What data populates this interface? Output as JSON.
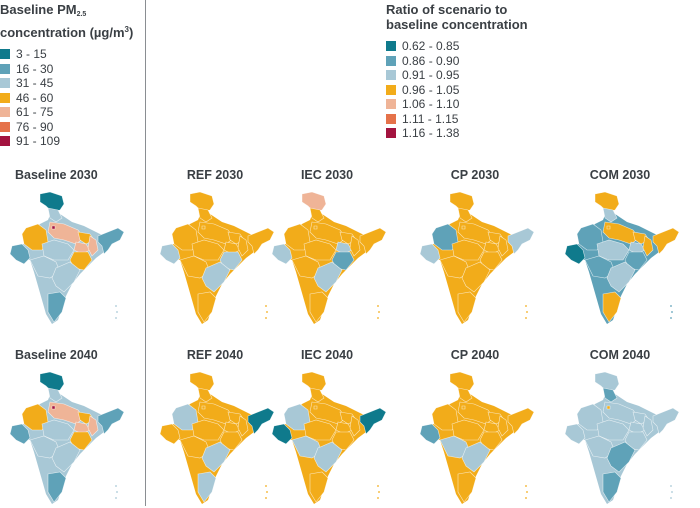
{
  "baseline_legend": {
    "title_main": "Baseline PM",
    "title_sub": "2.5",
    "title_line2_prefix": "concentration (µg/m",
    "title_sup": "3",
    "title_line2_suffix": ")",
    "items": [
      {
        "label": "3 - 15",
        "color": "#0f7a8c"
      },
      {
        "label": "16 - 30",
        "color": "#5fa2b8"
      },
      {
        "label": "31 - 45",
        "color": "#a8c8d6"
      },
      {
        "label": "46 - 60",
        "color": "#f2ac1a"
      },
      {
        "label": "61 - 75",
        "color": "#efb497"
      },
      {
        "label": "76 - 90",
        "color": "#e5724a"
      },
      {
        "label": "91 - 109",
        "color": "#a3133f"
      }
    ]
  },
  "ratio_legend": {
    "title_line1": "Ratio of scenario to",
    "title_line2": "baseline concentration",
    "items": [
      {
        "label": "0.62 - 0.85",
        "color": "#0f7a8c"
      },
      {
        "label": "0.86 - 0.90",
        "color": "#5fa2b8"
      },
      {
        "label": "0.91 - 0.95",
        "color": "#a8c8d6"
      },
      {
        "label": "0.96 - 1.05",
        "color": "#f2ac1a"
      },
      {
        "label": "1.06 - 1.10",
        "color": "#efb497"
      },
      {
        "label": "1.11 - 1.15",
        "color": "#e5724a"
      },
      {
        "label": "1.16 - 1.38",
        "color": "#a3133f"
      }
    ]
  },
  "panels": [
    {
      "title": "Baseline 2030",
      "regions": {
        "base": "#a8c8d6",
        "jk": "#0f7a8c",
        "hp": "#a8c8d6",
        "raj": "#f2ac1a",
        "guj": "#5fa2b8",
        "up": "#efb497",
        "bihar": "#f2ac1a",
        "odisha": "#f2ac1a",
        "ne": "#5fa2b8",
        "mp": "#a8c8d6",
        "mh": "#a8c8d6",
        "ap": "#a8c8d6",
        "tn": "#5fa2b8",
        "delhi": "#a3133f",
        "wb": "#efb497",
        "jh": "#efb497"
      }
    },
    {
      "title": "REF 2030",
      "regions": {
        "base": "#f2ac1a",
        "jk": "#f2ac1a",
        "hp": "#f2ac1a",
        "raj": "#f2ac1a",
        "guj": "#a8c8d6",
        "up": "#f2ac1a",
        "bihar": "#f2ac1a",
        "odisha": "#a8c8d6",
        "ne": "#f2ac1a",
        "mp": "#f2ac1a",
        "mh": "#f2ac1a",
        "ap": "#a8c8d6",
        "tn": "#f2ac1a",
        "delhi": "#f2ac1a",
        "wb": "#f2ac1a",
        "jh": "#f2ac1a"
      }
    },
    {
      "title": "IEC 2030",
      "regions": {
        "base": "#f2ac1a",
        "jk": "#efb497",
        "hp": "#f2ac1a",
        "raj": "#f2ac1a",
        "guj": "#a8c8d6",
        "up": "#f2ac1a",
        "bihar": "#f2ac1a",
        "odisha": "#5fa2b8",
        "ne": "#f2ac1a",
        "mp": "#f2ac1a",
        "mh": "#f2ac1a",
        "ap": "#a8c8d6",
        "tn": "#f2ac1a",
        "delhi": "#f2ac1a",
        "wb": "#f2ac1a",
        "jh": "#a8c8d6"
      }
    },
    {
      "title": "CP 2030",
      "regions": {
        "base": "#f2ac1a",
        "jk": "#f2ac1a",
        "hp": "#f2ac1a",
        "raj": "#5fa2b8",
        "guj": "#a8c8d6",
        "up": "#f2ac1a",
        "bihar": "#f2ac1a",
        "odisha": "#f2ac1a",
        "ne": "#a8c8d6",
        "mp": "#f2ac1a",
        "mh": "#f2ac1a",
        "ap": "#f2ac1a",
        "tn": "#f2ac1a",
        "delhi": "#f2ac1a",
        "wb": "#f2ac1a",
        "jh": "#f2ac1a"
      }
    },
    {
      "title": "COM 2030",
      "regions": {
        "base": "#5fa2b8",
        "jk": "#f2ac1a",
        "hp": "#a8c8d6",
        "raj": "#5fa2b8",
        "guj": "#0f7a8c",
        "up": "#f2ac1a",
        "bihar": "#f2ac1a",
        "odisha": "#5fa2b8",
        "ne": "#f2ac1a",
        "mp": "#a8c8d6",
        "mh": "#5fa2b8",
        "ap": "#a8c8d6",
        "tn": "#f2ac1a",
        "delhi": "#f2ac1a",
        "wb": "#f2ac1a",
        "jh": "#a8c8d6"
      }
    },
    {
      "title": "Baseline 2040",
      "regions": {
        "base": "#a8c8d6",
        "jk": "#0f7a8c",
        "hp": "#a8c8d6",
        "raj": "#f2ac1a",
        "guj": "#5fa2b8",
        "up": "#efb497",
        "bihar": "#f2ac1a",
        "odisha": "#f2ac1a",
        "ne": "#5fa2b8",
        "mp": "#a8c8d6",
        "mh": "#a8c8d6",
        "ap": "#a8c8d6",
        "tn": "#5fa2b8",
        "delhi": "#a3133f",
        "wb": "#efb497",
        "jh": "#efb497"
      }
    },
    {
      "title": "REF 2040",
      "regions": {
        "base": "#f2ac1a",
        "jk": "#f2ac1a",
        "hp": "#f2ac1a",
        "raj": "#a8c8d6",
        "guj": "#f2ac1a",
        "up": "#f2ac1a",
        "bihar": "#f2ac1a",
        "odisha": "#f2ac1a",
        "ne": "#0f7a8c",
        "mp": "#f2ac1a",
        "mh": "#f2ac1a",
        "ap": "#a8c8d6",
        "tn": "#a8c8d6",
        "delhi": "#f2ac1a",
        "wb": "#f2ac1a",
        "jh": "#f2ac1a"
      }
    },
    {
      "title": "IEC 2040",
      "regions": {
        "base": "#f2ac1a",
        "jk": "#f2ac1a",
        "hp": "#f2ac1a",
        "raj": "#a8c8d6",
        "guj": "#0f7a8c",
        "up": "#f2ac1a",
        "bihar": "#f2ac1a",
        "odisha": "#f2ac1a",
        "ne": "#0f7a8c",
        "mp": "#f2ac1a",
        "mh": "#a8c8d6",
        "ap": "#a8c8d6",
        "tn": "#f2ac1a",
        "delhi": "#f2ac1a",
        "wb": "#f2ac1a",
        "jh": "#f2ac1a"
      }
    },
    {
      "title": "CP 2040",
      "regions": {
        "base": "#f2ac1a",
        "jk": "#f2ac1a",
        "hp": "#f2ac1a",
        "raj": "#f2ac1a",
        "guj": "#5fa2b8",
        "up": "#f2ac1a",
        "bihar": "#f2ac1a",
        "odisha": "#f2ac1a",
        "ne": "#f2ac1a",
        "mp": "#f2ac1a",
        "mh": "#a8c8d6",
        "ap": "#a8c8d6",
        "tn": "#f2ac1a",
        "delhi": "#f2ac1a",
        "wb": "#f2ac1a",
        "jh": "#f2ac1a"
      }
    },
    {
      "title": "COM 2040",
      "regions": {
        "base": "#a8c8d6",
        "jk": "#a8c8d6",
        "hp": "#5fa2b8",
        "raj": "#a8c8d6",
        "guj": "#a8c8d6",
        "up": "#a8c8d6",
        "bihar": "#a8c8d6",
        "odisha": "#a8c8d6",
        "ne": "#a8c8d6",
        "mp": "#a8c8d6",
        "mh": "#a8c8d6",
        "ap": "#5fa2b8",
        "tn": "#5fa2b8",
        "delhi": "#f2ac1a",
        "wb": "#a8c8d6",
        "jh": "#a8c8d6"
      }
    }
  ]
}
